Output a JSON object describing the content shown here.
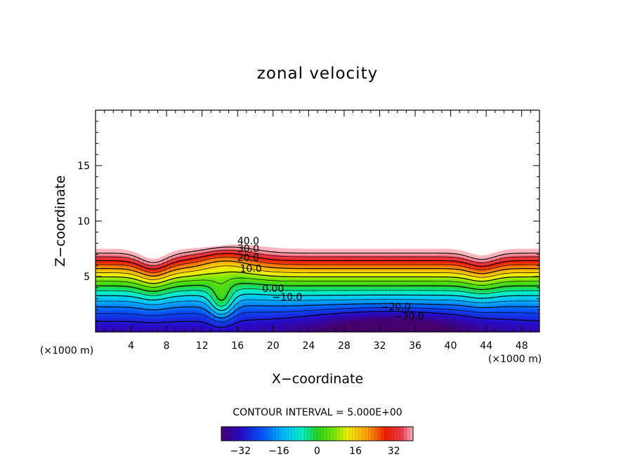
{
  "chart_data": {
    "type": "contour",
    "title": "zonal velocity",
    "xlabel": "X−coordinate",
    "ylabel": "Z−coordinate",
    "x_unit_left": "(×1000 m)",
    "x_unit_right": "(×1000 m)",
    "xlim": [
      0,
      50
    ],
    "ylim": [
      0,
      20
    ],
    "x_ticks": [
      "4",
      "8",
      "12",
      "16",
      "20",
      "24",
      "28",
      "32",
      "36",
      "40",
      "44",
      "48"
    ],
    "y_ticks": [
      "5",
      "10",
      "15"
    ],
    "contour_labels": [
      "40.0",
      "30.0",
      "20.0",
      "10.0",
      "0.00",
      "−10.0",
      "−20.0",
      "−30.0"
    ],
    "contour_interval": "CONTOUR INTERVAL = 5.000E+00",
    "colorbar": {
      "range": [
        -40,
        40
      ],
      "ticks": [
        "−32",
        "−16",
        "0",
        "16",
        "32"
      ]
    }
  }
}
